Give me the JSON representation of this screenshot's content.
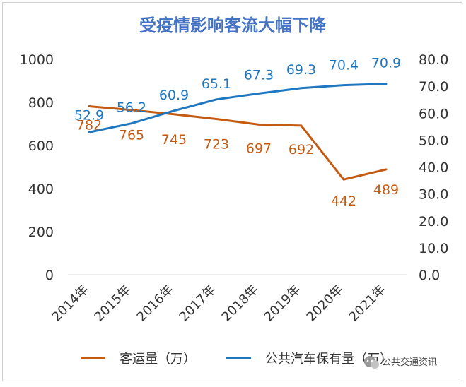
{
  "chart_data": {
    "type": "line",
    "title": "受疫情影响客流大幅下降",
    "categories": [
      "2014年",
      "2015年",
      "2016年",
      "2017年",
      "2018年",
      "2019年",
      "2020年",
      "2021年"
    ],
    "series": [
      {
        "name": "客运量（万）",
        "axis": "left",
        "color": "#c55a11",
        "values": [
          782,
          765,
          745,
          723,
          697,
          692,
          442,
          489
        ],
        "labels": [
          "782",
          "765",
          "745",
          "723",
          "697",
          "692",
          "442",
          "489"
        ]
      },
      {
        "name": "公共汽车保有量（万）",
        "axis": "right",
        "color": "#1f77c0",
        "values": [
          52.9,
          56.2,
          60.9,
          65.1,
          67.3,
          69.3,
          70.4,
          70.9
        ],
        "labels": [
          "52.9",
          "56.2",
          "60.9",
          "65.1",
          "67.3",
          "69.3",
          "70.4",
          "70.9"
        ]
      }
    ],
    "y_left": {
      "ylim": [
        0,
        1000
      ],
      "ticks": [
        "0",
        "200",
        "400",
        "600",
        "800",
        "1000"
      ]
    },
    "y_right": {
      "ylim": [
        0,
        80
      ],
      "ticks": [
        "0.0",
        "10.0",
        "20.0",
        "30.0",
        "40.0",
        "50.0",
        "60.0",
        "70.0",
        "80.0"
      ]
    },
    "grid": false,
    "legend_position": "bottom"
  },
  "watermark": {
    "text": "公共交通资讯",
    "icon": "wechat-icon"
  }
}
